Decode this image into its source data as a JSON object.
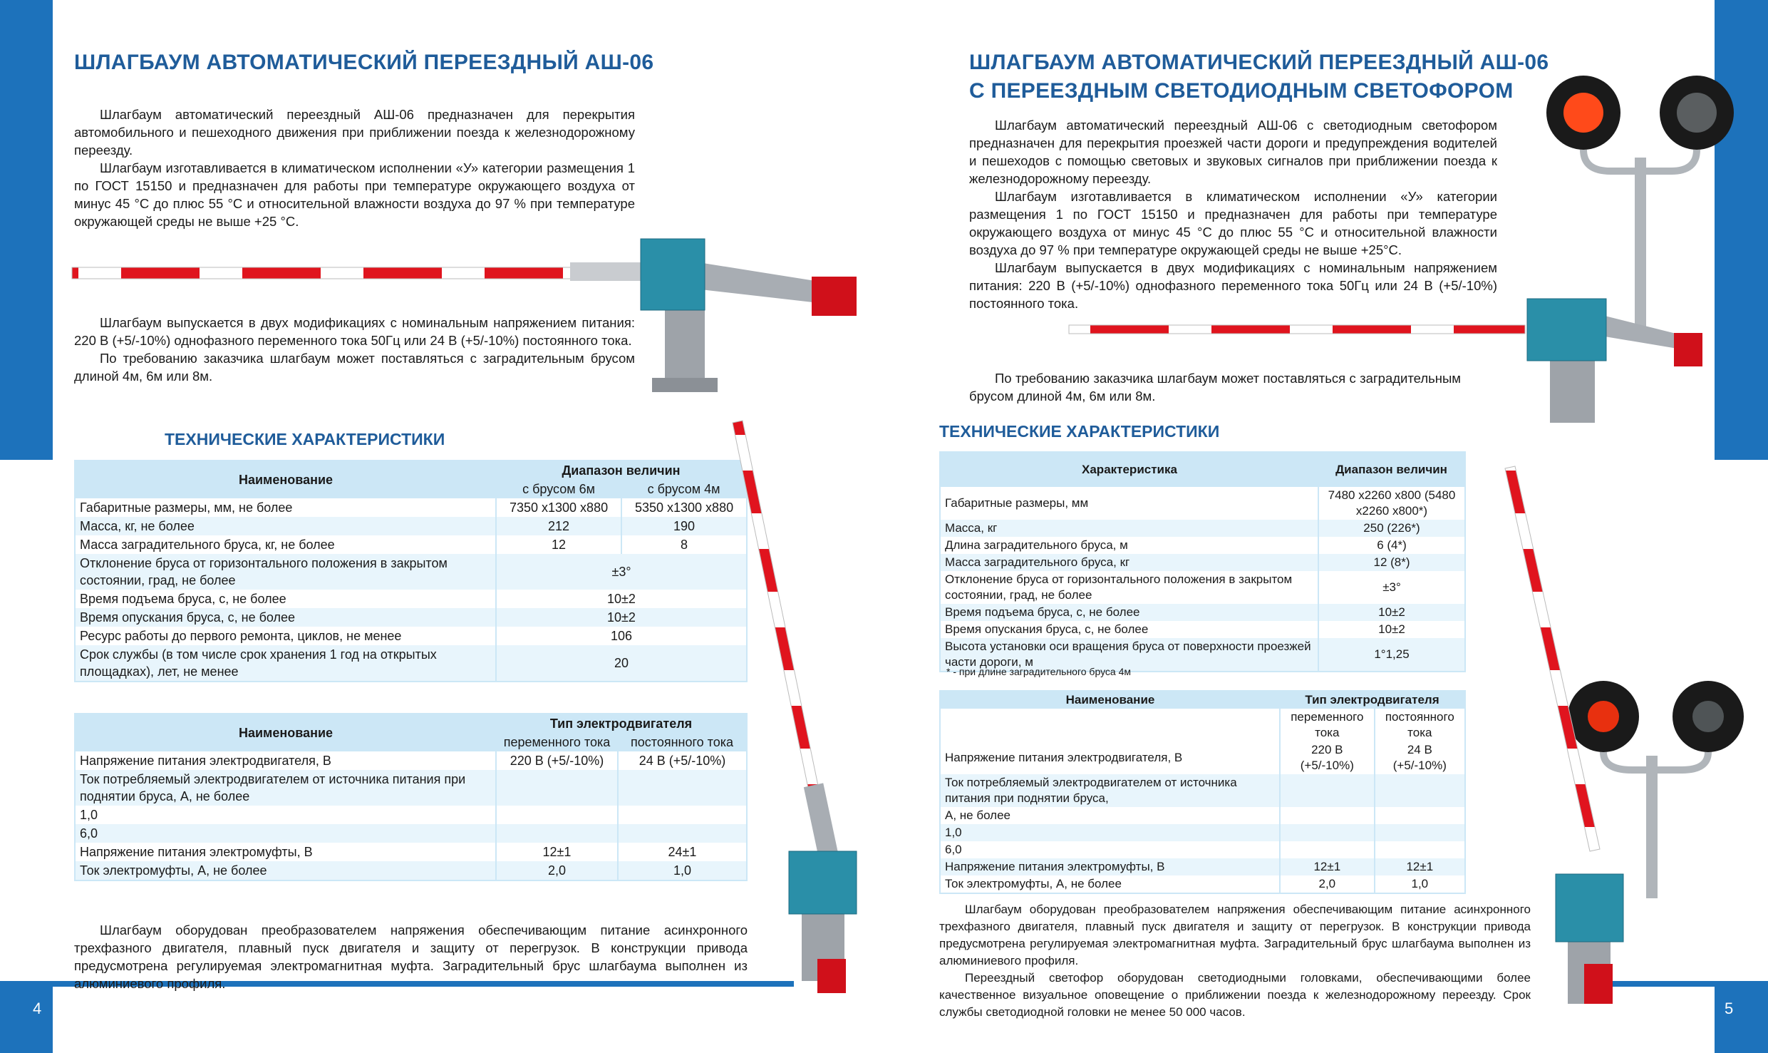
{
  "left": {
    "title": "ШЛАГБАУМ АВТОМАТИЧЕСКИЙ ПЕРЕЕЗДНЫЙ АШ-06",
    "intro": [
      "Шлагбаум автоматический переездный АШ-06 предназначен для перекрытия автомобильного и пешеходного движения при приближении поезда к железнодорожному переезду.",
      "Шлагбаум изготавливается в климатическом исполнении «У» категории размещения 1 по ГОСТ 15150 и предназначен для работы при температуре окружающего воздуха от минус 45 °С до плюс 55 °С и относительной влажности воздуха до 97 % при температуре окружающей среды не выше +25 °С."
    ],
    "mods": [
      "Шлагбаум выпускается в двух модификациях с номинальным напряжением питания: 220 В (+5/-10%) однофазного переменного тока 50Гц или 24 В (+5/-10%) постоянного тока.",
      "По требованию заказчика шлагбаум может поставляться с заградительным брусом длиной 4м, 6м или 8м."
    ],
    "tech_heading": "ТЕХНИЧЕСКИЕ ХАРАКТЕРИСТИКИ",
    "table1": {
      "h_name": "Наименование",
      "h_range": "Диапазон величин",
      "h_6m": "с брусом 6м",
      "h_4m": "с брусом 4м",
      "rows": [
        [
          "Габаритные размеры, мм, не более",
          "7350 x1300 x880",
          "5350 x1300 x880"
        ],
        [
          "Масса, кг, не более",
          "212",
          "190"
        ],
        [
          "Масса заградительного бруса, кг, не более",
          "12",
          "8"
        ],
        [
          "Отклонение бруса от горизонтального положения в закрытом состоянии, град, не более",
          "±3°"
        ],
        [
          "Время подъема бруса, с, не более",
          "10±2"
        ],
        [
          "Время опускания бруса, с, не более",
          "10±2"
        ],
        [
          "Ресурс работы до первого ремонта, циклов, не менее",
          "106"
        ],
        [
          "Срок службы (в том числе срок хранения 1 год на открытых площадках), лет, не менее",
          "20"
        ]
      ]
    },
    "table2": {
      "h_name": "Наименование",
      "h_type": "Тип электродвигателя",
      "h_ac": "переменного тока",
      "h_dc": "постоянного тока",
      "rows": [
        [
          "Напряжение питания электродвигателя, В",
          "220 В (+5/-10%)",
          "24 В (+5/-10%)"
        ],
        [
          "Ток потребляемый электродвигателем от источника питания при поднятии бруса, А, не более",
          "",
          ""
        ],
        [
          "1,0",
          "",
          ""
        ],
        [
          "6,0",
          "",
          ""
        ],
        [
          "Напряжение питания электромуфты, В",
          "12±1",
          "24±1"
        ],
        [
          "Ток электромуфты, А, не более",
          "2,0",
          "1,0"
        ]
      ]
    },
    "outro": [
      "Шлагбаум оборудован преобразователем напряжения  обеспечивающим питание асинхронного трехфазного двигателя,  плавный пуск двигателя и защиту  от перегрузок. В конструкции привода предусмотрена регулируемая электромагнитная муфта. Заградительный брус шлагбаума выполнен из алюминиевого профиля."
    ],
    "page_number": "4"
  },
  "right": {
    "title_line1": "ШЛАГБАУМ АВТОМАТИЧЕСКИЙ ПЕРЕЕЗДНЫЙ АШ-06",
    "title_line2": "С ПЕРЕЕЗДНЫМ СВЕТОДИОДНЫМ СВЕТОФОРОМ",
    "intro": [
      "Шлагбаум автоматический переездный АШ-06 с светодиодным светофором предназначен для перекрытия проезжей части дороги и предупреждения водителей и пешеходов с помощью световых и звуковых сигналов при приближении поезда к железнодорожному переезду.",
      "Шлагбаум изготавливается в климатическом исполнении «У» категории размещения 1 по ГОСТ 15150 и предназначен для работы при температуре окружающего воздуха от минус 45 °С до плюс 55 °С и относительной влажности воздуха до 97 % при температуре окружающей среды не выше +25°С.",
      "Шлагбаум выпускается в двух модификациях с номинальным напряжением питания: 220 В (+5/-10%) однофазного переменного тока 50Гц или 24 В (+5/-10%) постоянного тока."
    ],
    "mods": [
      "По требованию заказчика шлагбаум может поставляться с заградительным брусом длиной 4м, 6м или 8м."
    ],
    "tech_heading": "ТЕХНИЧЕСКИЕ ХАРАКТЕРИСТИКИ",
    "table1": {
      "h_name": "Характеристика",
      "h_range": "Диапазон величин",
      "rows": [
        [
          "Габаритные размеры, мм",
          "7480 x2260 x800 (5480 x2260 x800*)"
        ],
        [
          "Масса, кг",
          "250 (226*)"
        ],
        [
          "Длина заградительного бруса, м",
          "6 (4*)"
        ],
        [
          "Масса заградительного бруса, кг",
          "12 (8*)"
        ],
        [
          "Отклонение бруса от горизонтального положения в закрытом состоянии, град, не более",
          "±3°"
        ],
        [
          "Время подъема бруса, с, не более",
          "10±2"
        ],
        [
          "Время опускания бруса, с, не более",
          "10±2"
        ],
        [
          "Высота установки оси вращения бруса от поверхности проезжей части дороги, м",
          "1°1,25"
        ]
      ]
    },
    "footnote": "* - при длине заградительного бруса 4м",
    "table2": {
      "h_name": "Наименование",
      "h_type": "Тип электродвигателя",
      "h_ac": "переменного тока",
      "h_dc": "постоянного тока",
      "rows": [
        [
          "Напряжение питания электродвигателя, В",
          "220 В (+5/-10%)",
          "24 В (+5/-10%)"
        ],
        [
          "Ток потребляемый электродвигателем от источника питания при поднятии бруса,",
          "",
          ""
        ],
        [
          "А, не более",
          "",
          ""
        ],
        [
          "1,0",
          "",
          ""
        ],
        [
          "6,0",
          "",
          ""
        ],
        [
          "Напряжение питания электромуфты, В",
          "12±1",
          "12±1"
        ],
        [
          "Ток электромуфты, А, не более",
          "2,0",
          "1,0"
        ]
      ]
    },
    "outro": [
      "Шлагбаум оборудован преобразователем напряжения  обеспечивающим питание асинхронного трехфазного двигателя,  плавный пуск двигателя и защиту  от перегрузок. В конструкции привода предусмотрена регулируемая электромагнитная муфта. Заградительный брус шлагбаума выполнен из алюминиевого профиля.",
      "Переездный светофор оборудован светодиодными головками, обеспечивающими более качественное визуальное оповещение  о приближении поезда к железнодорожному переезду. Срок службы светодиодной головки не менее 50 000 часов."
    ],
    "page_number": "5"
  },
  "colors": {
    "brand_blue": "#1d72bb",
    "heading": "#1f5c9a",
    "table_header": "#cce7f6",
    "barrier_red": "#e0141e",
    "housing": "#2a8fa8"
  }
}
